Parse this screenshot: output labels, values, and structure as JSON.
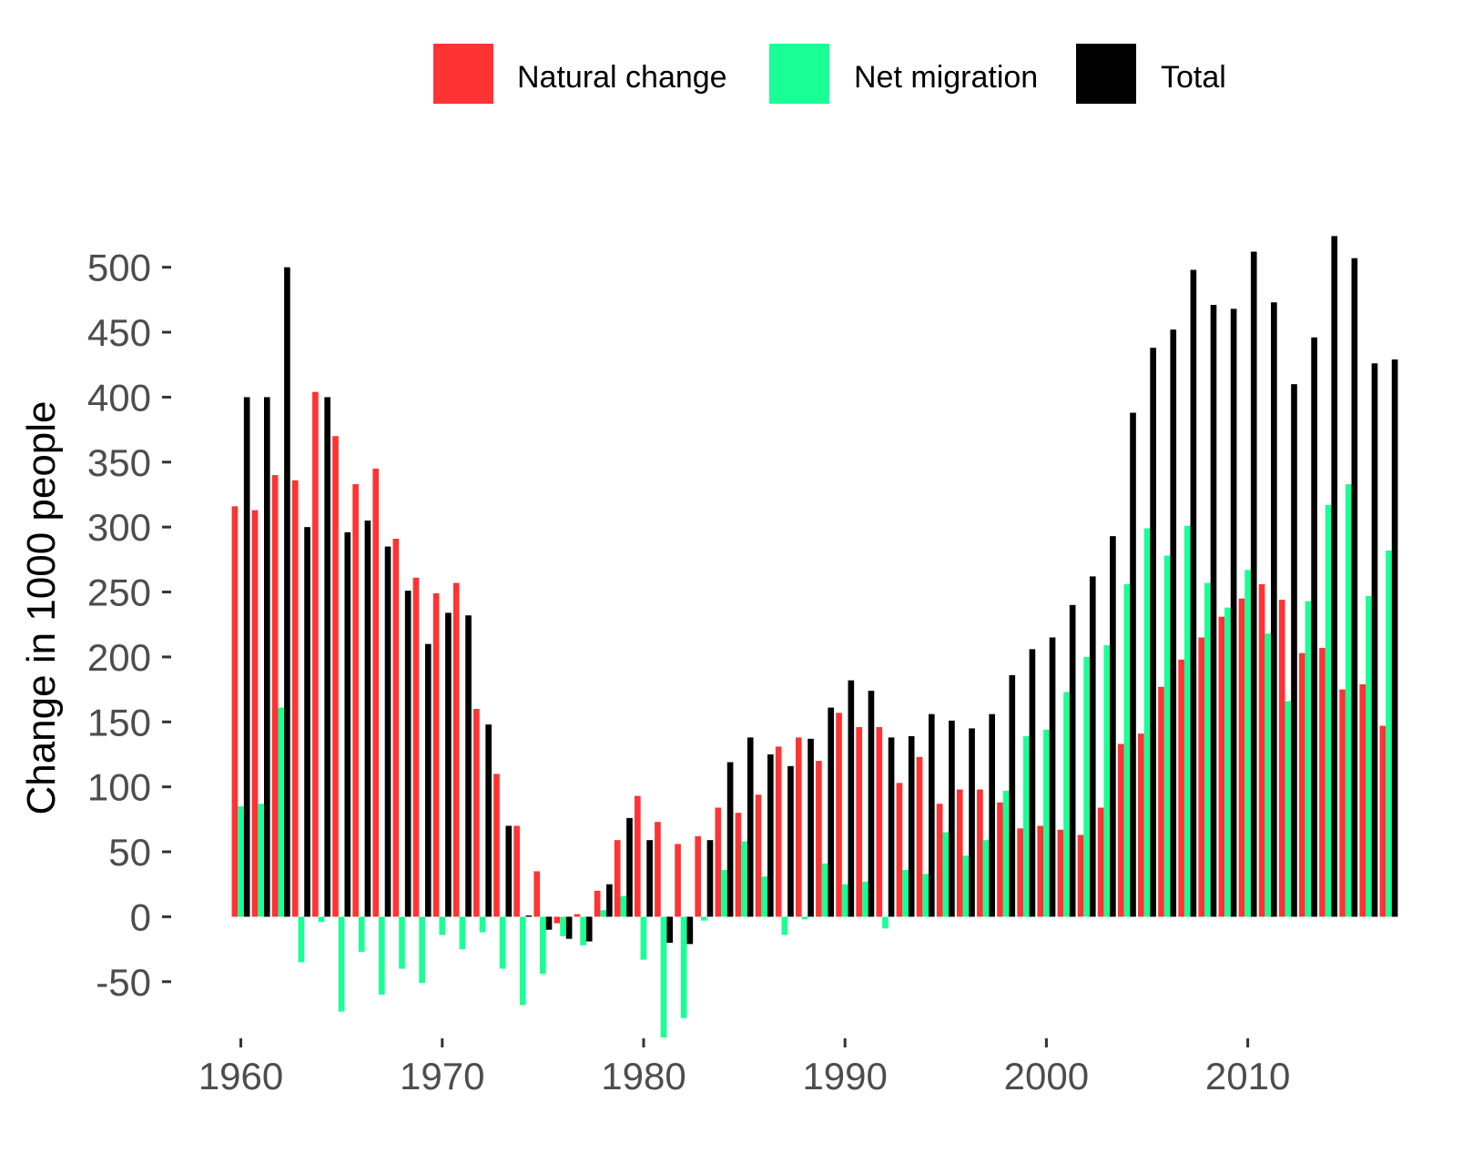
{
  "chart_data": {
    "type": "bar",
    "ylabel": "Change in 1000 people",
    "xlabel": "",
    "ylim": [
      -95,
      525
    ],
    "xlim": [
      1958.8,
      2018.2
    ],
    "yticks": [
      -50,
      0,
      50,
      100,
      150,
      200,
      250,
      300,
      350,
      400,
      450,
      500
    ],
    "xticks": [
      1960,
      1970,
      1980,
      1990,
      2000,
      2010
    ],
    "grid": false,
    "legend_position": "top",
    "x": [
      1960,
      1961,
      1962,
      1963,
      1964,
      1965,
      1966,
      1967,
      1968,
      1969,
      1970,
      1971,
      1972,
      1973,
      1974,
      1975,
      1976,
      1977,
      1978,
      1979,
      1980,
      1981,
      1982,
      1983,
      1984,
      1985,
      1986,
      1987,
      1988,
      1989,
      1990,
      1991,
      1992,
      1993,
      1994,
      1995,
      1996,
      1997,
      1998,
      1999,
      2000,
      2001,
      2002,
      2003,
      2004,
      2005,
      2006,
      2007,
      2008,
      2009,
      2010,
      2011,
      2012,
      2013,
      2014,
      2015,
      2016,
      2017
    ],
    "series": [
      {
        "name": "Natural change",
        "color": "#ff3333",
        "values": [
          316,
          313,
          340,
          336,
          404,
          370,
          333,
          345,
          291,
          261,
          249,
          257,
          160,
          110,
          70,
          35,
          -5,
          2,
          20,
          59,
          93,
          73,
          56,
          62,
          84,
          80,
          94,
          131,
          138,
          120,
          157,
          146,
          146,
          103,
          123,
          87,
          98,
          98,
          88,
          68,
          70,
          67,
          63,
          84,
          133,
          141,
          177,
          198,
          215,
          231,
          245,
          256,
          244,
          203,
          207,
          175,
          179,
          147
        ]
      },
      {
        "name": "Net migration",
        "color": "#1aff95",
        "values": [
          85,
          87,
          161,
          -35,
          -4,
          -73,
          -27,
          -60,
          -40,
          -51,
          -14,
          -25,
          -12,
          -40,
          -68,
          -44,
          -15,
          -22,
          5,
          16,
          -33,
          -93,
          -78,
          -3,
          36,
          58,
          31,
          -14,
          -2,
          41,
          25,
          27,
          -9,
          36,
          33,
          65,
          47,
          59,
          97,
          139,
          144,
          173,
          200,
          209,
          256,
          299,
          278,
          301,
          257,
          238,
          267,
          218,
          166,
          243,
          317,
          333,
          247,
          282
        ]
      },
      {
        "name": "Total",
        "color": "#000000",
        "values": [
          400,
          400,
          500,
          300,
          400,
          296,
          305,
          285,
          251,
          210,
          234,
          232,
          148,
          70,
          1,
          -10,
          -17,
          -19,
          25,
          76,
          59,
          -20,
          -21,
          59,
          119,
          138,
          125,
          116,
          137,
          161,
          182,
          174,
          138,
          139,
          156,
          151,
          145,
          156,
          186,
          206,
          215,
          240,
          262,
          293,
          388,
          438,
          452,
          498,
          471,
          468,
          512,
          473,
          410,
          446,
          524,
          507,
          426,
          429
        ]
      }
    ]
  }
}
